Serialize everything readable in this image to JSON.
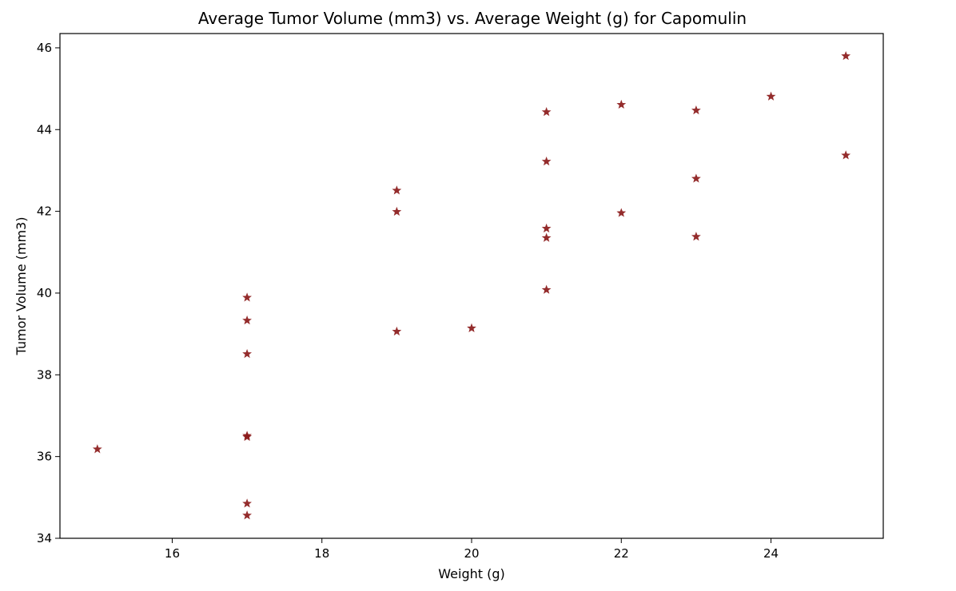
{
  "chart_data": {
    "type": "scatter",
    "title": "Average Tumor Volume (mm3) vs. Average Weight (g) for Capomulin",
    "xlabel": "Weight (g)",
    "ylabel": "Tumor Volume (mm3)",
    "xlim": [
      14.5,
      25.5
    ],
    "ylim": [
      34,
      46.35
    ],
    "xticks": [
      16,
      18,
      20,
      22,
      24
    ],
    "yticks": [
      34,
      36,
      38,
      40,
      42,
      44,
      46
    ],
    "grid": false,
    "marker": "star",
    "marker_color": "#8b1a1a",
    "points": [
      {
        "x": 15,
        "y": 36.18
      },
      {
        "x": 17,
        "y": 39.89
      },
      {
        "x": 17,
        "y": 39.33
      },
      {
        "x": 17,
        "y": 38.51
      },
      {
        "x": 17,
        "y": 36.51
      },
      {
        "x": 17,
        "y": 36.48
      },
      {
        "x": 17,
        "y": 34.85
      },
      {
        "x": 17,
        "y": 34.56
      },
      {
        "x": 19,
        "y": 42.51
      },
      {
        "x": 19,
        "y": 41.99
      },
      {
        "x": 19,
        "y": 39.06
      },
      {
        "x": 20,
        "y": 39.14
      },
      {
        "x": 21,
        "y": 44.43
      },
      {
        "x": 21,
        "y": 43.22
      },
      {
        "x": 21,
        "y": 41.58
      },
      {
        "x": 21,
        "y": 41.35
      },
      {
        "x": 21,
        "y": 40.08
      },
      {
        "x": 22,
        "y": 44.61
      },
      {
        "x": 22,
        "y": 41.96
      },
      {
        "x": 23,
        "y": 44.47
      },
      {
        "x": 23,
        "y": 42.8
      },
      {
        "x": 23,
        "y": 41.38
      },
      {
        "x": 24,
        "y": 44.81
      },
      {
        "x": 25,
        "y": 45.8
      },
      {
        "x": 25,
        "y": 43.37
      }
    ]
  }
}
